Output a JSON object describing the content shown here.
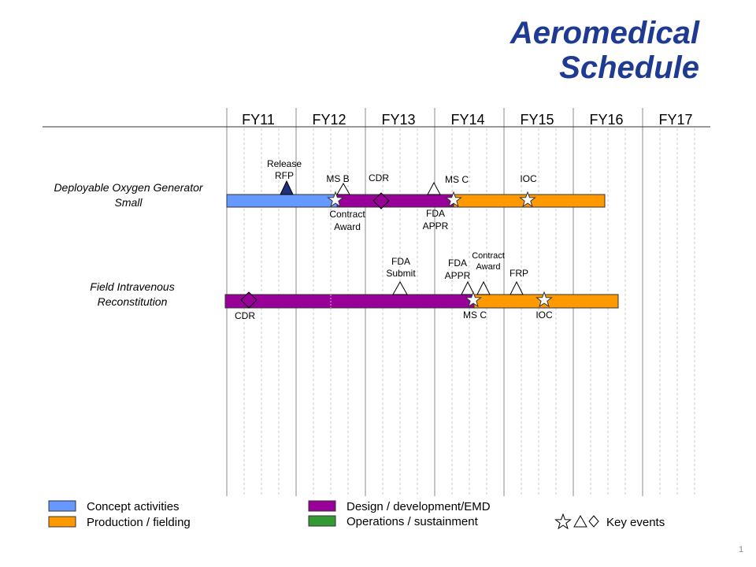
{
  "title": {
    "line1": "Aeromedical",
    "line2": "Schedule"
  },
  "page_number": "1",
  "fiscal_years": [
    "FY11",
    "FY12",
    "FY13",
    "FY14",
    "FY15",
    "FY16",
    "FY17"
  ],
  "colors": {
    "concept": "#6699ff",
    "design": "#990099",
    "production": "#ff9900",
    "operations": "#339933",
    "milestone_navy": "#1f2f7a",
    "title": "#1f3a93"
  },
  "programs": [
    {
      "name_line1": "Deployable Oxygen Generator",
      "name_line2": "Small",
      "phases": [
        {
          "type": "concept",
          "start": "FY11 Q1",
          "end": "FY12 Q3"
        },
        {
          "type": "design",
          "start": "FY12 Q3",
          "end": "FY14 Q2"
        },
        {
          "type": "production",
          "start": "FY14 Q2",
          "end": "FY16 Q2"
        }
      ],
      "events": [
        {
          "shape": "triangle-filled",
          "label_line1": "Release",
          "label_line2": "RFP"
        },
        {
          "shape": "triangle",
          "label_line1": "MS B",
          "label_line2": ""
        },
        {
          "shape": "star",
          "label_line1": "Contract",
          "label_line2": "Award"
        },
        {
          "shape": "diamond",
          "label_line1": "CDR",
          "label_line2": ""
        },
        {
          "shape": "triangle",
          "label_line1": "FDA",
          "label_line2": "APPR"
        },
        {
          "shape": "star",
          "label_line1": "MS C",
          "label_line2": ""
        },
        {
          "shape": "star",
          "label_line1": "IOC",
          "label_line2": ""
        }
      ]
    },
    {
      "name_line1": "Field Intravenous",
      "name_line2": "Reconstitution",
      "phases": [
        {
          "type": "design",
          "start": "FY11 Q1",
          "end": "FY14 Q3"
        },
        {
          "type": "production",
          "start": "FY14 Q3",
          "end": "FY16 Q3"
        }
      ],
      "events": [
        {
          "shape": "diamond",
          "label_line1": "CDR",
          "label_line2": ""
        },
        {
          "shape": "triangle",
          "label_line1": "FDA",
          "label_line2": "Submit"
        },
        {
          "shape": "triangle",
          "label_line1": "FDA",
          "label_line2": "APPR"
        },
        {
          "shape": "triangle",
          "label_line1": "Contract",
          "label_line2": "Award"
        },
        {
          "shape": "star",
          "label_line1": "MS C",
          "label_line2": ""
        },
        {
          "shape": "triangle",
          "label_line1": "FRP",
          "label_line2": ""
        },
        {
          "shape": "star",
          "label_line1": "IOC",
          "label_line2": ""
        }
      ]
    }
  ],
  "legend": {
    "concept": "Concept activities",
    "production": "Production / fielding",
    "design": "Design / development/EMD",
    "operations": "Operations / sustainment",
    "key_events": "Key events"
  }
}
